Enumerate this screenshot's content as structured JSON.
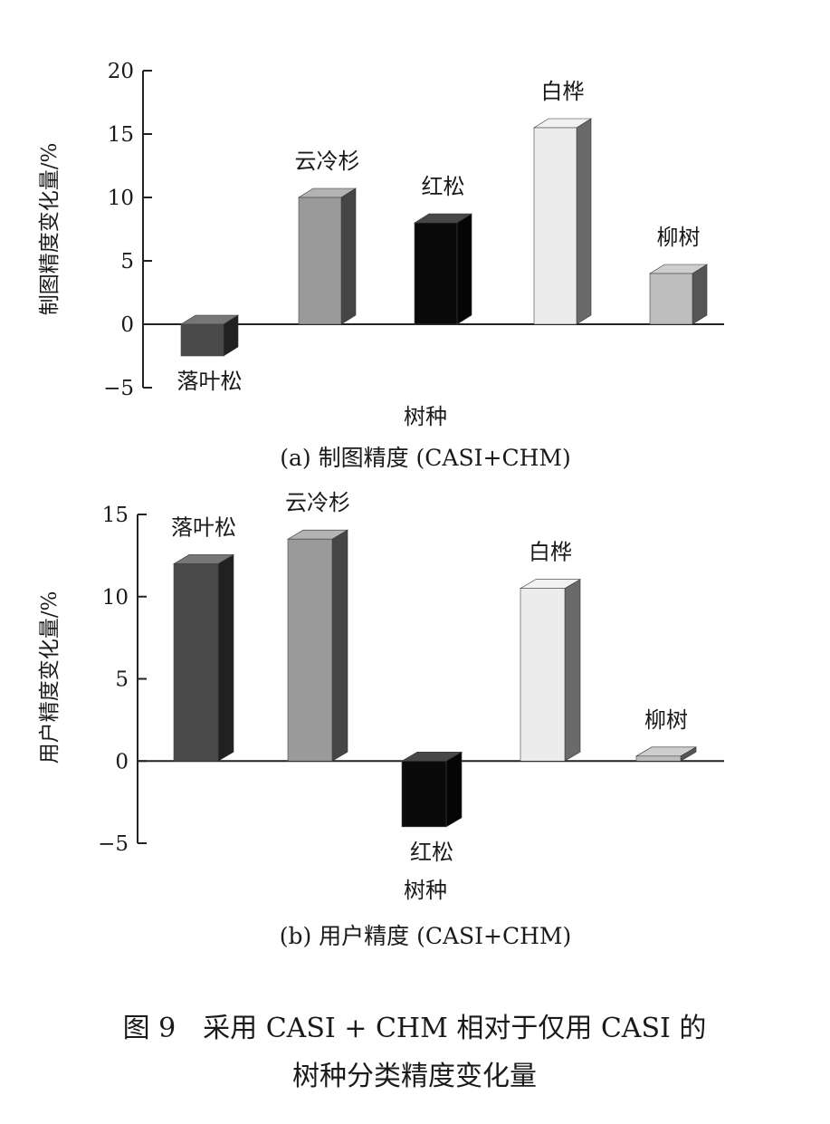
{
  "chart_data": [
    {
      "type": "bar",
      "title": "(a) 制图精度 (CASI+CHM)",
      "xlabel": "树种",
      "ylabel": "制图精度变化量/%",
      "ylim": [
        -5,
        20
      ],
      "yticks": [
        "−5",
        "0",
        "5",
        "10",
        "15",
        "20"
      ],
      "categories": [
        "落叶松",
        "云冷杉",
        "红松",
        "白桦",
        "柳树"
      ],
      "values": [
        -2.5,
        10,
        8,
        15.5,
        4
      ],
      "colors": [
        "#4a4a4a",
        "#9a9a9a",
        "#0a0a0a",
        "#ececec",
        "#bdbdbd"
      ]
    },
    {
      "type": "bar",
      "title": "(b) 用户精度 (CASI+CHM)",
      "xlabel": "树种",
      "ylabel": "用户精度变化量/%",
      "ylim": [
        -5,
        15
      ],
      "yticks": [
        "−5",
        "0",
        "5",
        "10",
        "15"
      ],
      "categories": [
        "落叶松",
        "云冷杉",
        "红松",
        "白桦",
        "柳树"
      ],
      "values": [
        12,
        13.5,
        -4,
        10.5,
        0.3
      ],
      "colors": [
        "#4a4a4a",
        "#9a9a9a",
        "#0a0a0a",
        "#ececec",
        "#bdbdbd"
      ]
    }
  ],
  "caption": {
    "line1": "图 9　采用 CASI + CHM 相对于仅用 CASI 的",
    "line2": "树种分类精度变化量"
  }
}
